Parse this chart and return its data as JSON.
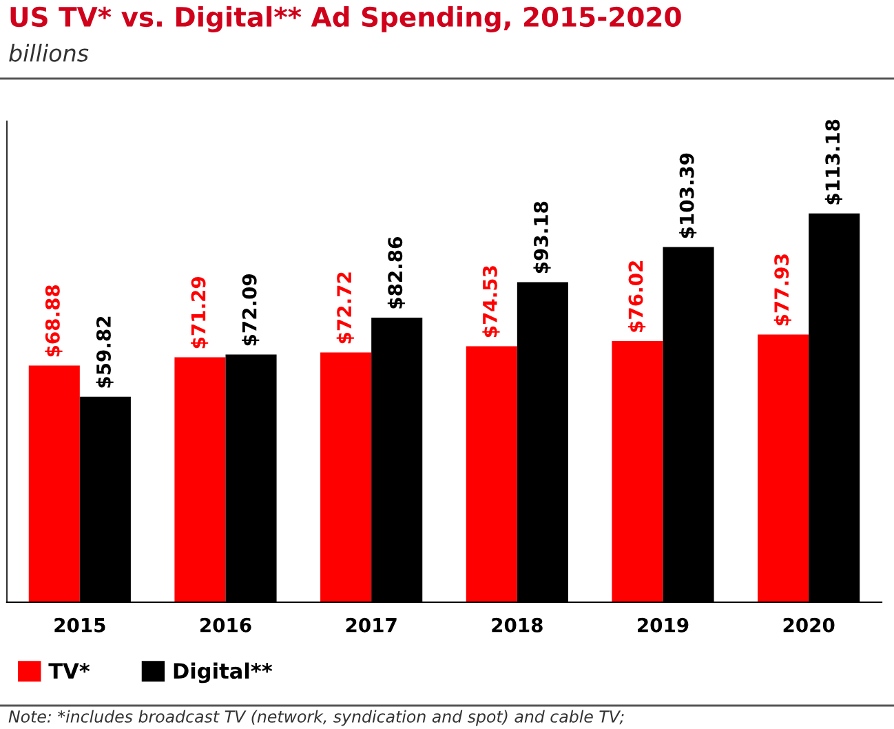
{
  "chart_data": {
    "type": "bar",
    "title": "US TV* vs. Digital** Ad Spending, 2015-2020",
    "subtitle": "billions",
    "categories": [
      "2015",
      "2016",
      "2017",
      "2018",
      "2019",
      "2020"
    ],
    "series": [
      {
        "name": "TV*",
        "color": "#ff0000",
        "values": [
          68.88,
          71.29,
          72.72,
          74.53,
          76.02,
          77.93
        ],
        "value_labels": [
          "$68.88",
          "$71.29",
          "$72.72",
          "$74.53",
          "$76.02",
          "$77.93"
        ]
      },
      {
        "name": "Digital**",
        "color": "#000000",
        "values": [
          59.82,
          72.09,
          82.86,
          93.18,
          103.39,
          113.18
        ],
        "value_labels": [
          "$59.82",
          "$72.09",
          "$82.86",
          "$93.18",
          "$103.39",
          "$113.18"
        ]
      }
    ],
    "ylim": [
      0,
      140
    ],
    "tick_labels": "x",
    "grid": false,
    "legend": "bottom left",
    "annotations": [
      "Note: *includes broadcast TV (network, syndication and spot) and cable TV;"
    ]
  }
}
